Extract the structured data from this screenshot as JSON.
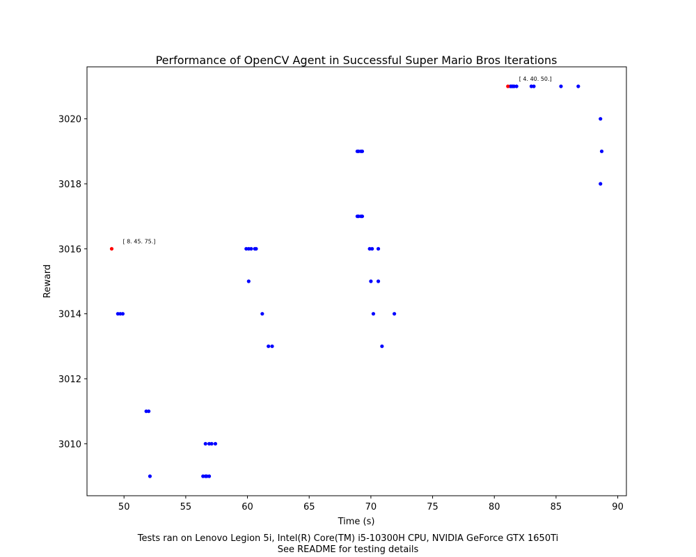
{
  "chart_data": {
    "type": "scatter",
    "title": "Performance of OpenCV Agent in Successful Super Mario Bros Iterations",
    "xlabel": "Time (s)",
    "ylabel": "Reward",
    "xlim": [
      47,
      90.7
    ],
    "ylim": [
      3008.4,
      3021.6
    ],
    "xticks": [
      50,
      55,
      60,
      65,
      70,
      75,
      80,
      85,
      90
    ],
    "yticks": [
      3010,
      3012,
      3014,
      3016,
      3018,
      3020
    ],
    "grid": false,
    "colors": {
      "points": "#0000ff",
      "highlight": "#ff0000"
    },
    "series": [
      {
        "color": "#0000ff",
        "points": [
          [
            49.5,
            3014
          ],
          [
            49.7,
            3014
          ],
          [
            49.9,
            3014
          ],
          [
            51.8,
            3011
          ],
          [
            52.0,
            3011
          ],
          [
            52.1,
            3009
          ],
          [
            56.4,
            3009
          ],
          [
            56.6,
            3009
          ],
          [
            56.7,
            3009
          ],
          [
            56.9,
            3009
          ],
          [
            56.6,
            3010
          ],
          [
            56.9,
            3010
          ],
          [
            57.1,
            3010
          ],
          [
            57.4,
            3010
          ],
          [
            59.9,
            3016
          ],
          [
            60.1,
            3016
          ],
          [
            60.3,
            3016
          ],
          [
            60.6,
            3016
          ],
          [
            60.7,
            3016
          ],
          [
            60.1,
            3015
          ],
          [
            61.2,
            3014
          ],
          [
            61.7,
            3013
          ],
          [
            62.0,
            3013
          ],
          [
            68.9,
            3019
          ],
          [
            69.0,
            3019
          ],
          [
            69.2,
            3019
          ],
          [
            69.3,
            3019
          ],
          [
            68.9,
            3017
          ],
          [
            69.0,
            3017
          ],
          [
            69.2,
            3017
          ],
          [
            69.3,
            3017
          ],
          [
            69.9,
            3016
          ],
          [
            70.1,
            3016
          ],
          [
            70.6,
            3016
          ],
          [
            70.0,
            3015
          ],
          [
            70.6,
            3015
          ],
          [
            70.2,
            3014
          ],
          [
            71.9,
            3014
          ],
          [
            70.9,
            3013
          ],
          [
            81.3,
            3021
          ],
          [
            81.4,
            3021
          ],
          [
            81.5,
            3021
          ],
          [
            81.6,
            3021
          ],
          [
            81.8,
            3021
          ],
          [
            83.0,
            3021
          ],
          [
            83.2,
            3021
          ],
          [
            85.4,
            3021
          ],
          [
            86.8,
            3021
          ],
          [
            88.6,
            3020
          ],
          [
            88.7,
            3019
          ],
          [
            88.6,
            3018
          ]
        ]
      },
      {
        "color": "#ff0000",
        "points": [
          {
            "x": 49.0,
            "y": 3016,
            "label": "[ 8. 45. 75.]"
          },
          {
            "x": 81.1,
            "y": 3021,
            "label": "[ 4. 40. 50.]"
          }
        ]
      }
    ]
  },
  "footer": {
    "line1": "Tests ran on Lenovo Legion 5i, Intel(R) Core(TM) i5-10300H CPU, NVIDIA GeForce GTX 1650Ti",
    "line2": "See README for testing details"
  }
}
